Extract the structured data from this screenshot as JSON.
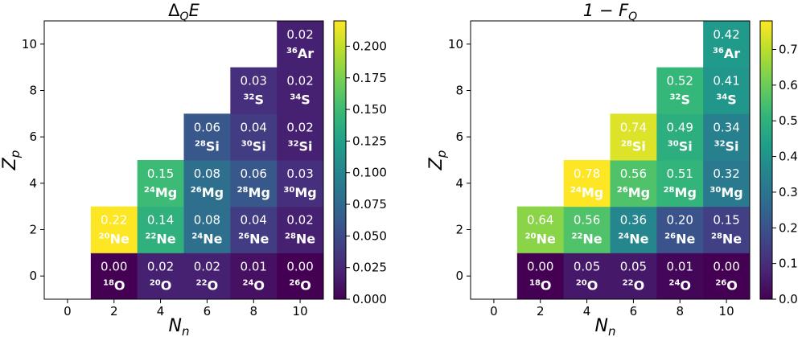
{
  "colormap": [
    "#440154",
    "#482878",
    "#3e4989",
    "#31688e",
    "#26828e",
    "#1f9e89",
    "#35b779",
    "#6ece58",
    "#b5de2b",
    "#fde725"
  ],
  "chart_data": [
    {
      "type": "heatmap",
      "title_main": "Δ",
      "title_sub": "Q",
      "title_tail": "E",
      "xlabel_main": "N",
      "xlabel_sub": "n",
      "ylabel_main": "Z",
      "ylabel_sub": "p",
      "x_ticks": [
        "0",
        "2",
        "4",
        "6",
        "8",
        "10"
      ],
      "y_ticks": [
        "0",
        "2",
        "4",
        "6",
        "8",
        "10"
      ],
      "xlim": [
        -1,
        11
      ],
      "ylim": [
        -1,
        11
      ],
      "vmin": 0.0,
      "vmax": 0.22,
      "colorbar_ticks": [
        0.0,
        0.025,
        0.05,
        0.075,
        0.1,
        0.125,
        0.15,
        0.175,
        0.2
      ],
      "colorbar_labels": [
        "0.000",
        "0.025",
        "0.050",
        "0.075",
        "0.100",
        "0.125",
        "0.150",
        "0.175",
        "0.200"
      ],
      "cells": [
        {
          "n": 2,
          "z": 0,
          "value": 0.0,
          "label": "0.00",
          "mass": "18",
          "sym": "O"
        },
        {
          "n": 4,
          "z": 0,
          "value": 0.02,
          "label": "0.02",
          "mass": "20",
          "sym": "O"
        },
        {
          "n": 6,
          "z": 0,
          "value": 0.02,
          "label": "0.02",
          "mass": "22",
          "sym": "O"
        },
        {
          "n": 8,
          "z": 0,
          "value": 0.01,
          "label": "0.01",
          "mass": "24",
          "sym": "O"
        },
        {
          "n": 10,
          "z": 0,
          "value": 0.0,
          "label": "0.00",
          "mass": "26",
          "sym": "O"
        },
        {
          "n": 2,
          "z": 2,
          "value": 0.22,
          "label": "0.22",
          "mass": "20",
          "sym": "Ne"
        },
        {
          "n": 4,
          "z": 2,
          "value": 0.14,
          "label": "0.14",
          "mass": "22",
          "sym": "Ne"
        },
        {
          "n": 6,
          "z": 2,
          "value": 0.08,
          "label": "0.08",
          "mass": "24",
          "sym": "Ne"
        },
        {
          "n": 8,
          "z": 2,
          "value": 0.04,
          "label": "0.04",
          "mass": "26",
          "sym": "Ne"
        },
        {
          "n": 10,
          "z": 2,
          "value": 0.02,
          "label": "0.02",
          "mass": "28",
          "sym": "Ne"
        },
        {
          "n": 4,
          "z": 4,
          "value": 0.15,
          "label": "0.15",
          "mass": "24",
          "sym": "Mg"
        },
        {
          "n": 6,
          "z": 4,
          "value": 0.08,
          "label": "0.08",
          "mass": "26",
          "sym": "Mg"
        },
        {
          "n": 8,
          "z": 4,
          "value": 0.06,
          "label": "0.06",
          "mass": "28",
          "sym": "Mg"
        },
        {
          "n": 10,
          "z": 4,
          "value": 0.03,
          "label": "0.03",
          "mass": "30",
          "sym": "Mg"
        },
        {
          "n": 6,
          "z": 6,
          "value": 0.06,
          "label": "0.06",
          "mass": "28",
          "sym": "Si"
        },
        {
          "n": 8,
          "z": 6,
          "value": 0.04,
          "label": "0.04",
          "mass": "30",
          "sym": "Si"
        },
        {
          "n": 10,
          "z": 6,
          "value": 0.02,
          "label": "0.02",
          "mass": "32",
          "sym": "Si"
        },
        {
          "n": 8,
          "z": 8,
          "value": 0.03,
          "label": "0.03",
          "mass": "32",
          "sym": "S"
        },
        {
          "n": 10,
          "z": 8,
          "value": 0.02,
          "label": "0.02",
          "mass": "34",
          "sym": "S"
        },
        {
          "n": 10,
          "z": 10,
          "value": 0.02,
          "label": "0.02",
          "mass": "36",
          "sym": "Ar"
        }
      ]
    },
    {
      "type": "heatmap",
      "title_main": "1 − F",
      "title_sub": "Q",
      "title_tail": "",
      "xlabel_main": "N",
      "xlabel_sub": "n",
      "ylabel_main": "Z",
      "ylabel_sub": "p",
      "x_ticks": [
        "0",
        "2",
        "4",
        "6",
        "8",
        "10"
      ],
      "y_ticks": [
        "0",
        "2",
        "4",
        "6",
        "8",
        "10"
      ],
      "xlim": [
        -1,
        11
      ],
      "ylim": [
        -1,
        11
      ],
      "vmin": 0.0,
      "vmax": 0.78,
      "colorbar_ticks": [
        0.0,
        0.1,
        0.2,
        0.3,
        0.4,
        0.5,
        0.6,
        0.7
      ],
      "colorbar_labels": [
        "0.0",
        "0.1",
        "0.2",
        "0.3",
        "0.4",
        "0.5",
        "0.6",
        "0.7"
      ],
      "cells": [
        {
          "n": 2,
          "z": 0,
          "value": 0.0,
          "label": "0.00",
          "mass": "18",
          "sym": "O"
        },
        {
          "n": 4,
          "z": 0,
          "value": 0.05,
          "label": "0.05",
          "mass": "20",
          "sym": "O"
        },
        {
          "n": 6,
          "z": 0,
          "value": 0.05,
          "label": "0.05",
          "mass": "22",
          "sym": "O"
        },
        {
          "n": 8,
          "z": 0,
          "value": 0.01,
          "label": "0.01",
          "mass": "24",
          "sym": "O"
        },
        {
          "n": 10,
          "z": 0,
          "value": 0.0,
          "label": "0.00",
          "mass": "26",
          "sym": "O"
        },
        {
          "n": 2,
          "z": 2,
          "value": 0.64,
          "label": "0.64",
          "mass": "20",
          "sym": "Ne"
        },
        {
          "n": 4,
          "z": 2,
          "value": 0.56,
          "label": "0.56",
          "mass": "22",
          "sym": "Ne"
        },
        {
          "n": 6,
          "z": 2,
          "value": 0.36,
          "label": "0.36",
          "mass": "24",
          "sym": "Ne"
        },
        {
          "n": 8,
          "z": 2,
          "value": 0.2,
          "label": "0.20",
          "mass": "26",
          "sym": "Ne"
        },
        {
          "n": 10,
          "z": 2,
          "value": 0.15,
          "label": "0.15",
          "mass": "28",
          "sym": "Ne"
        },
        {
          "n": 4,
          "z": 4,
          "value": 0.78,
          "label": "0.78",
          "mass": "24",
          "sym": "Mg"
        },
        {
          "n": 6,
          "z": 4,
          "value": 0.56,
          "label": "0.56",
          "mass": "26",
          "sym": "Mg"
        },
        {
          "n": 8,
          "z": 4,
          "value": 0.51,
          "label": "0.51",
          "mass": "28",
          "sym": "Mg"
        },
        {
          "n": 10,
          "z": 4,
          "value": 0.32,
          "label": "0.32",
          "mass": "30",
          "sym": "Mg"
        },
        {
          "n": 6,
          "z": 6,
          "value": 0.74,
          "label": "0.74",
          "mass": "28",
          "sym": "Si"
        },
        {
          "n": 8,
          "z": 6,
          "value": 0.49,
          "label": "0.49",
          "mass": "30",
          "sym": "Si"
        },
        {
          "n": 10,
          "z": 6,
          "value": 0.34,
          "label": "0.34",
          "mass": "32",
          "sym": "Si"
        },
        {
          "n": 8,
          "z": 8,
          "value": 0.52,
          "label": "0.52",
          "mass": "32",
          "sym": "S"
        },
        {
          "n": 10,
          "z": 8,
          "value": 0.41,
          "label": "0.41",
          "mass": "34",
          "sym": "S"
        },
        {
          "n": 10,
          "z": 10,
          "value": 0.42,
          "label": "0.42",
          "mass": "36",
          "sym": "Ar"
        }
      ]
    }
  ]
}
